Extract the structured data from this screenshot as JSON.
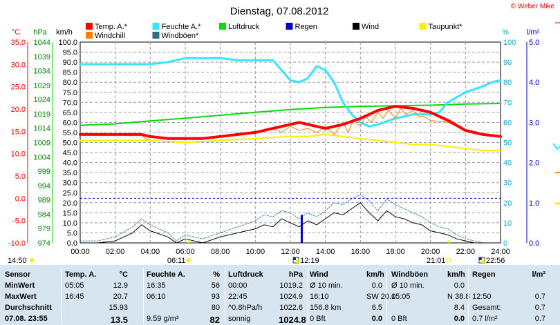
{
  "title": "Dienstag, 07.08.2012",
  "copyright": "© Weber Mike",
  "colors": {
    "temp": "#ff0000",
    "humidity": "#33e5ff",
    "pressure": "#00dd00",
    "rain": "#0000cc",
    "wind": "#000000",
    "dewpoint": "#ffee00",
    "windchill": "#ff7f00",
    "gusts": "#2f6f7f"
  },
  "legend": [
    {
      "label": "Temp. A.*",
      "color": "#ff0000",
      "row": 0,
      "col": 0
    },
    {
      "label": "Feuchte A.*",
      "color": "#33e5ff",
      "row": 0,
      "col": 1
    },
    {
      "label": "Luftdruck",
      "color": "#00dd00",
      "row": 0,
      "col": 2
    },
    {
      "label": "Regen",
      "color": "#0000cc",
      "row": 0,
      "col": 3
    },
    {
      "label": "Wind",
      "color": "#000000",
      "row": 0,
      "col": 4
    },
    {
      "label": "Taupunkt*",
      "color": "#ffee00",
      "row": 0,
      "col": 5
    },
    {
      "label": "Windchill",
      "color": "#ff7f00",
      "row": 1,
      "col": 0
    },
    {
      "label": "Windböen*",
      "color": "#2f6f7f",
      "row": 1,
      "col": 1
    }
  ],
  "axis_units": {
    "temp": "°C",
    "pressure": "hPa",
    "wind": "km/h",
    "humidity": "%",
    "rain": "l/m²"
  },
  "chart_data": {
    "type": "line",
    "xlim": [
      "00:00",
      "24:00"
    ],
    "x_ticks": [
      "00:00",
      "02:00",
      "04:00",
      "06:00",
      "08:00",
      "10:00",
      "12:00",
      "14:00",
      "16:00",
      "18:00",
      "20:00",
      "22:00",
      "24:00"
    ],
    "axes": {
      "temp": {
        "ylim": [
          -10,
          35
        ],
        "ticks": [
          "35.0",
          "30.0",
          "25.0",
          "20.0",
          "15.0",
          "10.0",
          "5.0",
          "0.0",
          "-5.0",
          "-10.0"
        ]
      },
      "pressure": {
        "ylim": [
          974,
          1044
        ],
        "ticks": [
          "1044",
          "1039",
          "1034",
          "1029",
          "1024",
          "1019",
          "1014",
          "1009",
          "1004",
          "999",
          "994",
          "989",
          "984",
          "979",
          "974"
        ]
      },
      "wind": {
        "ylim": [
          0,
          100
        ],
        "ticks": [
          "100.0",
          "95.0",
          "90.0",
          "85.0",
          "80.0",
          "75.0",
          "70.0",
          "65.0",
          "60.0",
          "55.0",
          "50.0",
          "45.0",
          "40.0",
          "35.0",
          "30.0",
          "25.0",
          "20.0",
          "15.0",
          "10.0",
          "5.0",
          "0.0"
        ]
      },
      "humidity": {
        "ylim": [
          0,
          100
        ],
        "ticks": [
          "100",
          "90",
          "80",
          "70",
          "60",
          "50",
          "40",
          "30",
          "20",
          "10",
          "0"
        ]
      },
      "rain": {
        "ylim": [
          0,
          5
        ],
        "ticks": [
          "5.0",
          "4.0",
          "3.0",
          "2.0",
          "1.0",
          "0.0"
        ]
      }
    },
    "series": [
      {
        "name": "Temp. A.*",
        "axis": "wind",
        "x": [
          0,
          2,
          3.5,
          4,
          5,
          6,
          7,
          8,
          9,
          10,
          11,
          12,
          12.5,
          13,
          14,
          15,
          16,
          16.5,
          17,
          18,
          19,
          20,
          21,
          22,
          23,
          24
        ],
        "y": [
          54,
          54,
          54,
          53,
          52,
          52,
          52,
          53,
          54,
          55,
          57,
          59,
          60,
          59,
          57,
          59,
          62,
          64,
          66,
          68,
          67,
          65,
          61,
          56,
          54,
          53
        ]
      },
      {
        "name": "Feuchte A.*",
        "axis": "humidity",
        "x": [
          0,
          1,
          2,
          3,
          4,
          5,
          5.5,
          6,
          7,
          8,
          9,
          10,
          11,
          12,
          12.5,
          13,
          13.5,
          14,
          14.5,
          15,
          15.5,
          16,
          16.5,
          17,
          18,
          19,
          20,
          20.5,
          21,
          22,
          23,
          23.5,
          24
        ],
        "y": [
          89,
          89,
          89,
          89,
          89,
          90,
          91,
          92,
          92,
          92,
          91,
          91,
          91,
          81,
          80,
          82,
          88,
          86,
          80,
          70,
          64,
          60,
          58,
          59,
          62,
          64,
          64,
          65,
          70,
          75,
          78,
          80,
          81
        ]
      },
      {
        "name": "Luftdruck",
        "axis": "pressure",
        "x": [
          0,
          2,
          4,
          6,
          8,
          10,
          12,
          14,
          16,
          18,
          20,
          22,
          24
        ],
        "y": [
          1015.0,
          1015.5,
          1016.5,
          1017.5,
          1018.5,
          1019.5,
          1020.5,
          1021.2,
          1021.6,
          1021.8,
          1022.0,
          1022.4,
          1022.6
        ]
      },
      {
        "name": "Taupunkt*",
        "axis": "wind",
        "x": [
          0,
          2,
          4,
          6,
          8,
          10,
          12,
          13,
          14,
          16,
          18,
          19,
          20,
          21,
          22,
          23,
          24
        ],
        "y": [
          51,
          51,
          51,
          50,
          51,
          52,
          53,
          53,
          54,
          52,
          50,
          49,
          49,
          48,
          47,
          46,
          46
        ]
      },
      {
        "name": "Windchill",
        "axis": "wind",
        "x": [
          0,
          3.5,
          3.8,
          4,
          6,
          8,
          10,
          11,
          11.5,
          12,
          12.5,
          13,
          13.5,
          14,
          14.5,
          15,
          15.3,
          15.6,
          16,
          16.3,
          16.6,
          17,
          17.3,
          17.6,
          18,
          18.3,
          18.6,
          19,
          19.3,
          19.6,
          20,
          21,
          22,
          23,
          24
        ],
        "y": [
          54,
          54,
          51,
          53,
          52,
          53,
          55,
          57,
          55,
          58,
          56,
          57,
          55,
          58,
          54,
          60,
          55,
          61,
          58,
          63,
          60,
          65,
          62,
          66,
          62,
          67,
          64,
          66,
          63,
          63,
          61,
          60,
          56,
          54,
          53
        ]
      },
      {
        "name": "Wind",
        "axis": "wind",
        "x": [
          0,
          1,
          2,
          3,
          3.5,
          4,
          5,
          5.5,
          6,
          7,
          8,
          9,
          10,
          10.5,
          11,
          11.5,
          12,
          12.5,
          13,
          13.5,
          14,
          14.5,
          15,
          15.5,
          16,
          16.5,
          17,
          17.5,
          18,
          18.5,
          19,
          19.5,
          20,
          20.5,
          21,
          21.5,
          22,
          22.5,
          23,
          24
        ],
        "y": [
          0,
          0,
          1,
          5,
          9,
          6,
          3,
          0,
          2,
          0,
          3,
          5,
          7,
          9,
          8,
          12,
          10,
          8,
          11,
          9,
          12,
          15,
          14,
          17,
          20,
          15,
          11,
          16,
          13,
          12,
          10,
          9,
          6,
          5,
          4,
          2,
          1,
          0,
          0,
          0
        ]
      },
      {
        "name": "Windböen*",
        "axis": "wind",
        "x": [
          0,
          1,
          2,
          3,
          3.5,
          4,
          5,
          5.5,
          6,
          7,
          8,
          9,
          10,
          10.5,
          11,
          11.5,
          12,
          12.5,
          13,
          13.5,
          14,
          14.5,
          15,
          15.5,
          16,
          16.5,
          17,
          17.5,
          18,
          18.5,
          19,
          19.5,
          20,
          20.5,
          21,
          21.5,
          22,
          22.5,
          23,
          24
        ],
        "y": [
          1,
          1,
          3,
          8,
          12,
          9,
          5,
          1,
          4,
          2,
          5,
          8,
          11,
          14,
          13,
          16,
          15,
          12,
          15,
          13,
          16,
          20,
          19,
          22,
          24,
          21,
          16,
          22,
          19,
          17,
          15,
          13,
          10,
          8,
          7,
          4,
          2,
          1,
          0,
          0
        ]
      },
      {
        "name": "Regen",
        "axis": "rain",
        "type": "bar",
        "x": [
          12.65
        ],
        "y": [
          0.7
        ]
      }
    ],
    "reference_lines": [
      {
        "axis": "temp",
        "value": 0,
        "color": "#0000cc",
        "style": "dashed"
      }
    ],
    "annotations": {
      "sunrise_time": "06:11",
      "sunset_time": "21:01",
      "moonrise_time": "12:19",
      "moonset_time": "22:56",
      "left_time": "14:50",
      "sunrise_x": 6.18,
      "sunset_x": 21.02,
      "moonrise_x": 12.32,
      "moonset_x": 22.93
    }
  },
  "table": {
    "rows": [
      [
        "Sensor",
        "Temp. A.",
        "°C",
        "Feuchte A.",
        "%",
        "Luftdruck",
        "hPa",
        "Wind",
        "km/h",
        "Windböen",
        "km/h",
        "Regen",
        "l/m²"
      ],
      [
        "MinWert",
        "05:05",
        "12.9",
        "16:35",
        "56",
        "00:00",
        "1019.2",
        "Ø 10 min.",
        "0.0",
        "Ø 10 min.",
        "0.0",
        "",
        ""
      ],
      [
        "MaxWert",
        "16:45",
        "20.7",
        "06:10",
        "93",
        "22:45",
        "1024.9",
        "16:10",
        "SW 20.0",
        "15:05",
        "N 38.8",
        "12:50",
        "0.7"
      ],
      [
        "Durchschnitt",
        "",
        "15.93",
        "",
        "80",
        "^0.8hPa/h",
        "1022.6",
        "156.8 km",
        "6.5",
        "",
        "8.4",
        "Gesamt:",
        "0.7"
      ],
      [
        "07.08. 23:55",
        "",
        "13.5",
        "9.59 g/m³",
        "82",
        "sonnig",
        "1024.8",
        "0 Bft",
        "0.0",
        "0 Bft",
        "0.0",
        "0.7 l/m²",
        "0.7"
      ]
    ]
  }
}
